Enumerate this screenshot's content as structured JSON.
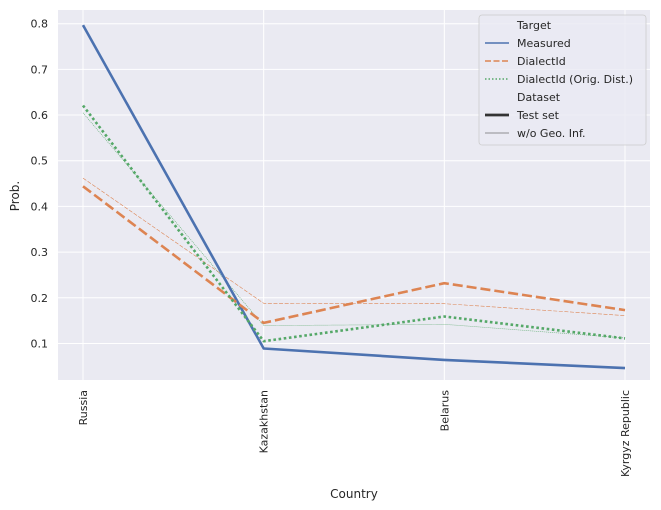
{
  "chart_data": {
    "type": "line",
    "xlabel": "Country",
    "ylabel": "Prob.",
    "categories": [
      "Russia",
      "Kazakhstan",
      "Belarus",
      "Kyrgyz Republic"
    ],
    "yticks": [
      0.1,
      0.2,
      0.3,
      0.4,
      0.5,
      0.6,
      0.7,
      0.8
    ],
    "ylim": [
      0.02,
      0.83
    ],
    "grid": true,
    "legend_position": "top-right",
    "series": [
      {
        "name": "Measured",
        "dataset": "Test set",
        "color": "#4c72b0",
        "style": "solid",
        "values": [
          0.797,
          0.089,
          0.064,
          0.046
        ]
      },
      {
        "name": "DialectId",
        "dataset": "Test set",
        "color": "#dd8452",
        "style": "dashed",
        "values": [
          0.444,
          0.145,
          0.232,
          0.173
        ]
      },
      {
        "name": "DialectId (Orig. Dist.)",
        "dataset": "Test set",
        "color": "#55a868",
        "style": "dotted",
        "values": [
          0.621,
          0.105,
          0.159,
          0.111
        ]
      },
      {
        "name": "DialectId",
        "dataset": "w/o Geo. Inf.",
        "color": "#dd8452",
        "style": "dashed",
        "values": [
          0.462,
          0.188,
          0.187,
          0.161
        ]
      },
      {
        "name": "DialectId (Orig. Dist.)",
        "dataset": "w/o Geo. Inf.",
        "color": "#55a868",
        "style": "dotted",
        "values": [
          0.605,
          0.139,
          0.142,
          0.112
        ]
      }
    ],
    "legend": {
      "target_title": "Target",
      "target_entries": [
        {
          "label": "Measured",
          "color": "#4c72b0",
          "style": "solid"
        },
        {
          "label": "DialectId",
          "color": "#dd8452",
          "style": "dashed"
        },
        {
          "label": "DialectId (Orig. Dist.)",
          "color": "#55a868",
          "style": "dotted"
        }
      ],
      "dataset_title": "Dataset",
      "dataset_entries": [
        {
          "label": "Test set",
          "weight": "thick"
        },
        {
          "label": "w/o Geo. Inf.",
          "weight": "thin"
        }
      ]
    },
    "colors": {
      "plot_background": "#eaeaf2",
      "grid": "#ffffff",
      "text": "#262626"
    }
  }
}
